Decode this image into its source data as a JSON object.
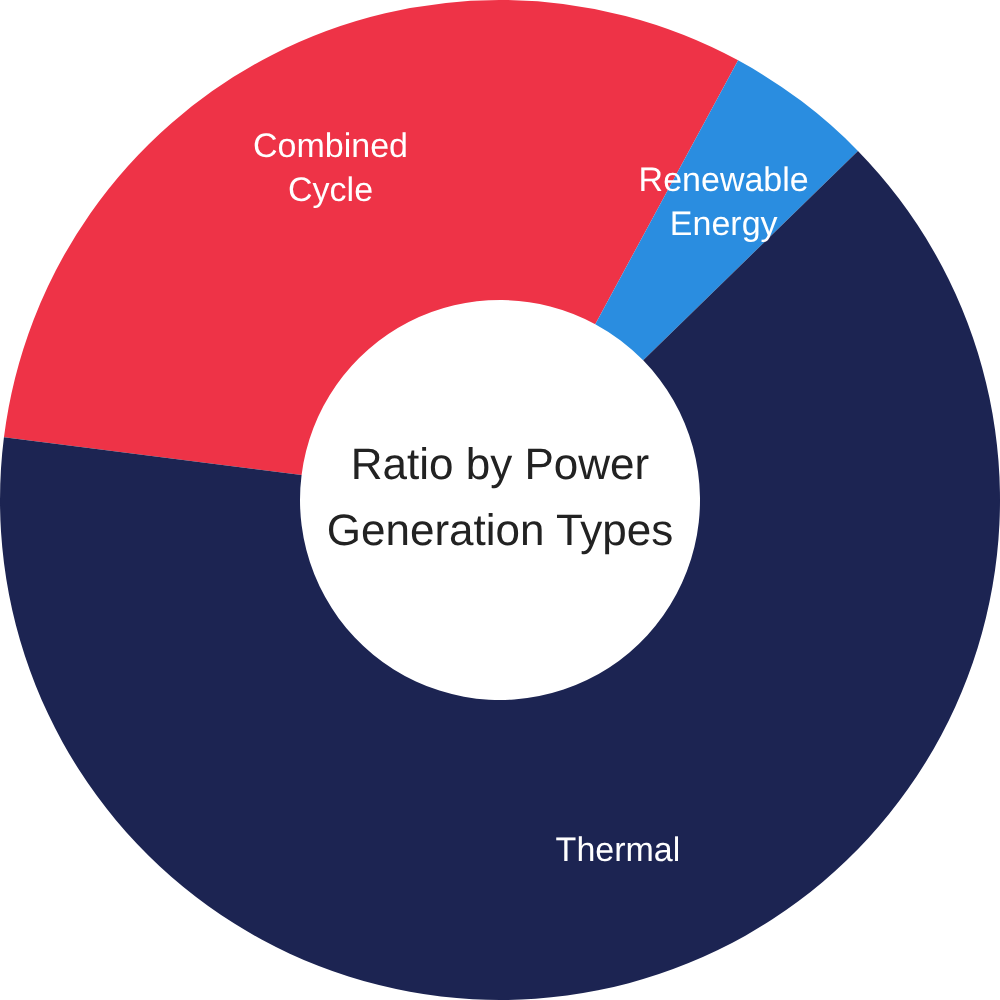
{
  "chart_data": {
    "type": "donut",
    "title": "Ratio by Power Generation Types",
    "categories": [
      "Combined Cycle",
      "Renewable Energy",
      "Thermal"
    ],
    "values": [
      30.9,
      4.8,
      64.3
    ],
    "colors": [
      "#ee3347",
      "#2a8de0",
      "#1c2452"
    ],
    "legend": false
  }
}
